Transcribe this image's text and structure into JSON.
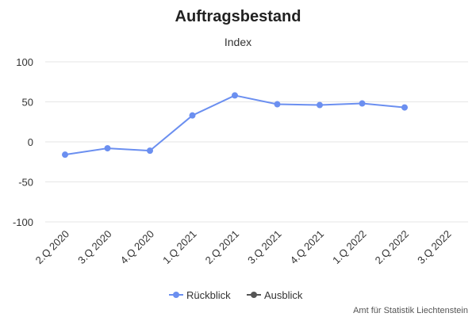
{
  "chart_data": {
    "type": "line",
    "title": "Auftragsbestand",
    "subtitle": "Index",
    "categories": [
      "2.Q 2020",
      "3.Q 2020",
      "4.Q 2020",
      "1.Q 2021",
      "2.Q 2021",
      "3.Q 2021",
      "4.Q 2021",
      "1.Q 2022",
      "2.Q 2022",
      "3.Q 2022"
    ],
    "series": [
      {
        "name": "Rückblick",
        "values": [
          -16,
          -8,
          -11,
          33,
          58,
          47,
          46,
          48,
          43,
          null
        ],
        "color": "#6b8ff0"
      },
      {
        "name": "Ausblick",
        "values": [
          null,
          null,
          null,
          null,
          null,
          null,
          null,
          null,
          null,
          null
        ],
        "color": "#555555"
      }
    ],
    "ylim": [
      -100,
      100
    ],
    "yticks": [
      -100,
      -50,
      0,
      50,
      100
    ],
    "grid": true,
    "legend_position": "bottom-center",
    "credit": "Amt für Statistik Liechtenstein"
  }
}
